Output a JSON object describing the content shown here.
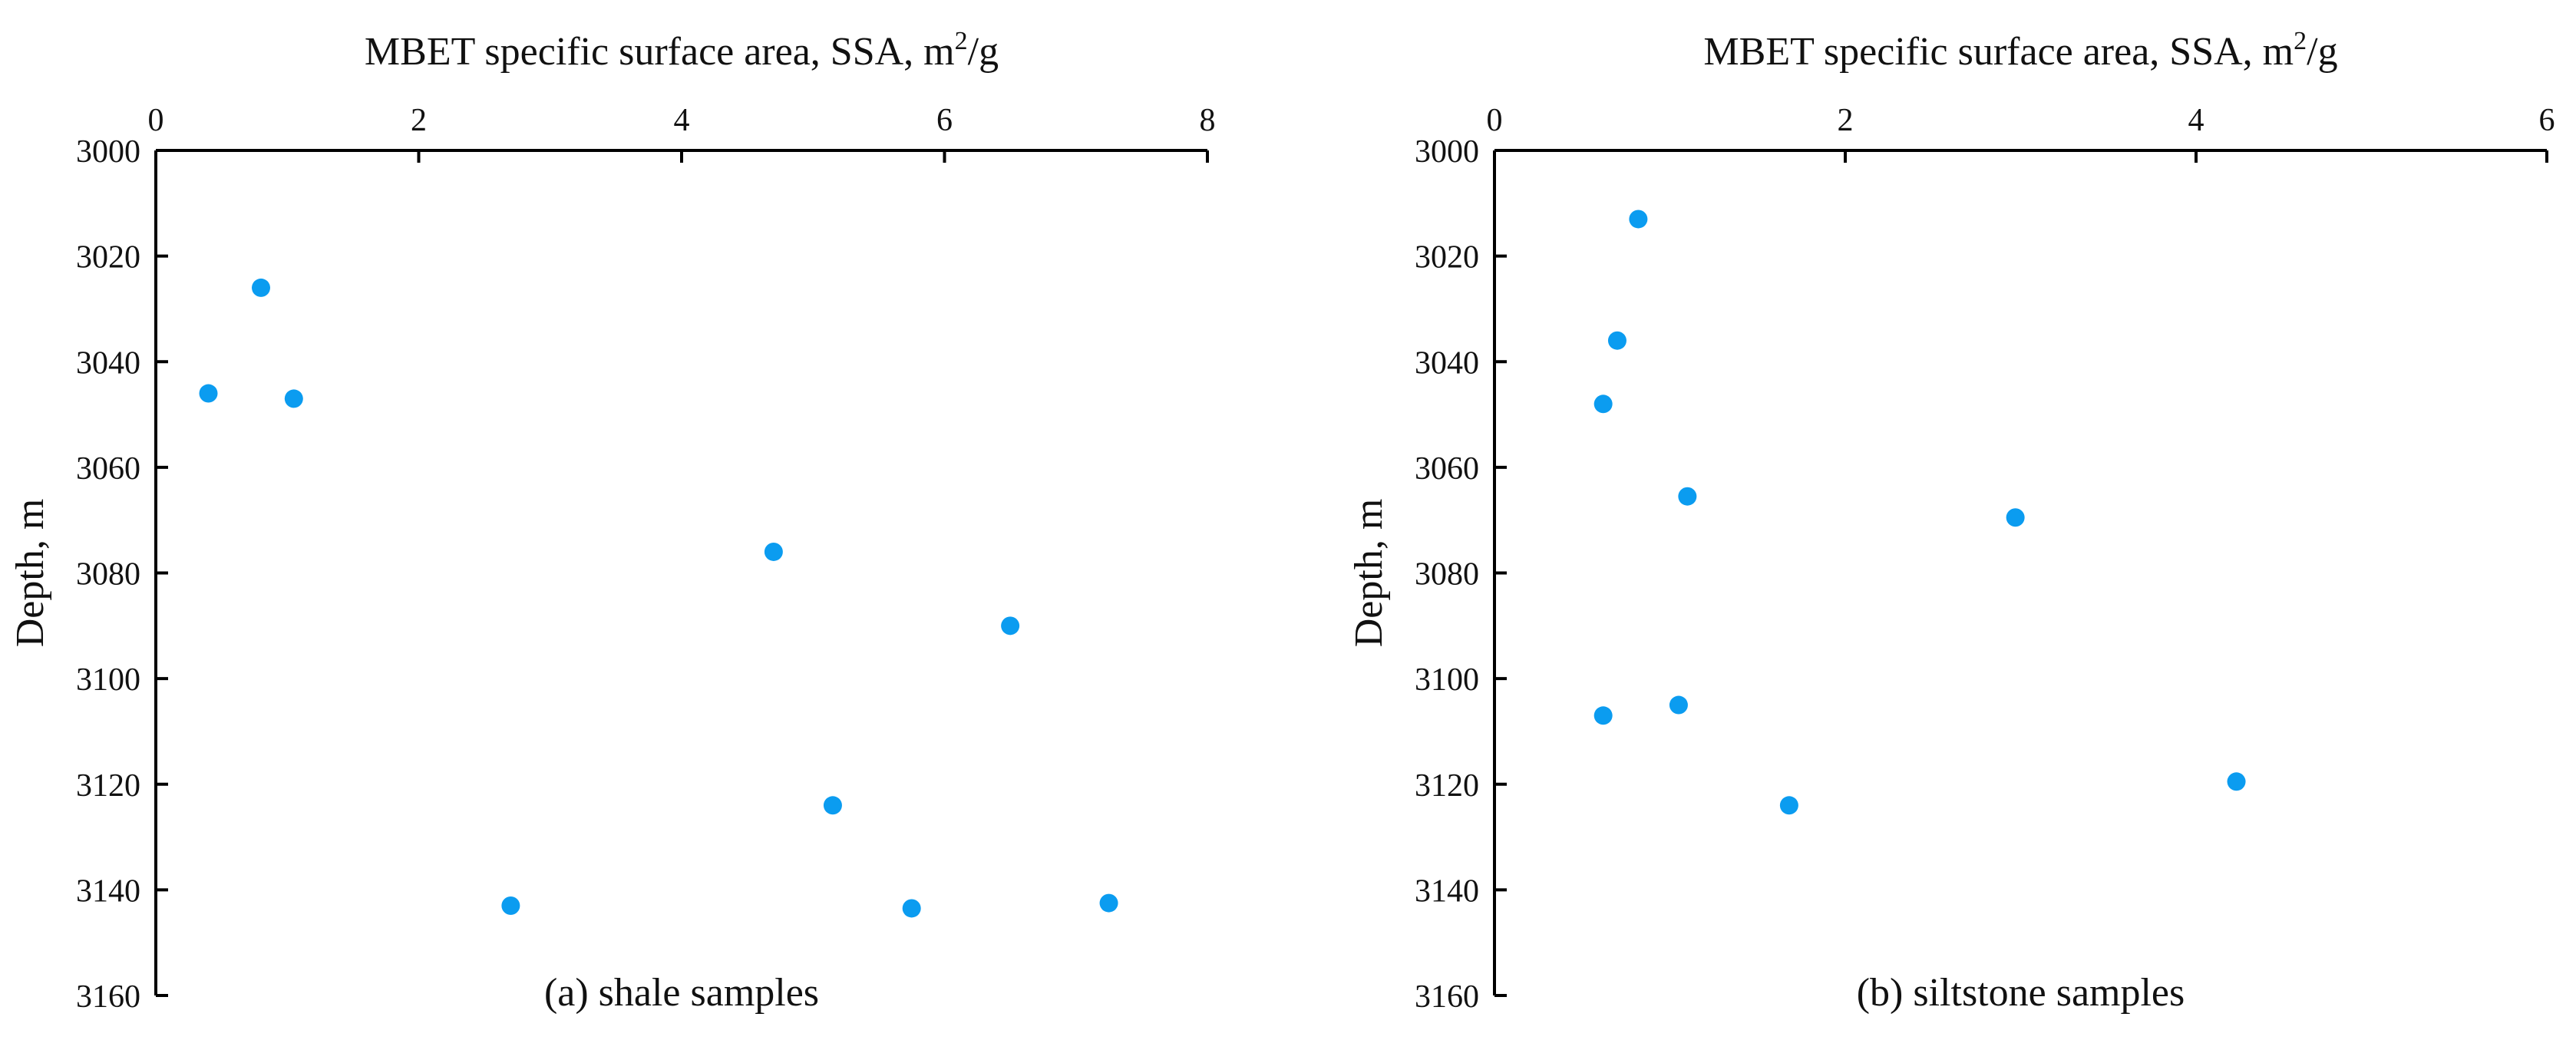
{
  "chart_data": [
    {
      "type": "scatter",
      "panel": "a",
      "title": "",
      "xlabel": "MBET specific surface area, SSA, m²/g",
      "xlabel_main": "MBET specific surface area, SSA, m",
      "xlabel_sup": "2",
      "xlabel_tail": "/g",
      "ylabel": "Depth, m",
      "caption": "(a) shale samples",
      "xlim": [
        0,
        8
      ],
      "ylim": [
        3000,
        3160
      ],
      "y_inverted": true,
      "x_axis_position": "top",
      "x_ticks": [
        0,
        2,
        4,
        6,
        8
      ],
      "y_ticks": [
        3000,
        3020,
        3040,
        3060,
        3080,
        3100,
        3120,
        3140,
        3160
      ],
      "grid": false,
      "marker_color": "#0b9cf0",
      "series": [
        {
          "name": "shale",
          "x": [
            0.8,
            0.4,
            1.05,
            4.7,
            6.5,
            5.15,
            2.7,
            5.75,
            7.25
          ],
          "y": [
            3026,
            3046,
            3047,
            3076,
            3090,
            3124,
            3143,
            3143.5,
            3142.5
          ]
        }
      ]
    },
    {
      "type": "scatter",
      "panel": "b",
      "title": "",
      "xlabel": "MBET specific surface area, SSA, m²/g",
      "xlabel_main": "MBET specific surface area, SSA, m",
      "xlabel_sup": "2",
      "xlabel_tail": "/g",
      "ylabel": "Depth, m",
      "caption": "(b) siltstone samples",
      "xlim": [
        0,
        6
      ],
      "ylim": [
        3000,
        3160
      ],
      "y_inverted": true,
      "x_axis_position": "top",
      "x_ticks": [
        0,
        2,
        4,
        6
      ],
      "y_ticks": [
        3000,
        3020,
        3040,
        3060,
        3080,
        3100,
        3120,
        3140,
        3160
      ],
      "grid": false,
      "marker_color": "#0b9cf0",
      "series": [
        {
          "name": "siltstone",
          "x": [
            0.82,
            0.7,
            0.62,
            1.1,
            2.97,
            1.05,
            0.62,
            1.68,
            4.23
          ],
          "y": [
            3013,
            3036,
            3048,
            3065.5,
            3069.5,
            3105,
            3107,
            3124,
            3119.5
          ]
        }
      ]
    }
  ]
}
